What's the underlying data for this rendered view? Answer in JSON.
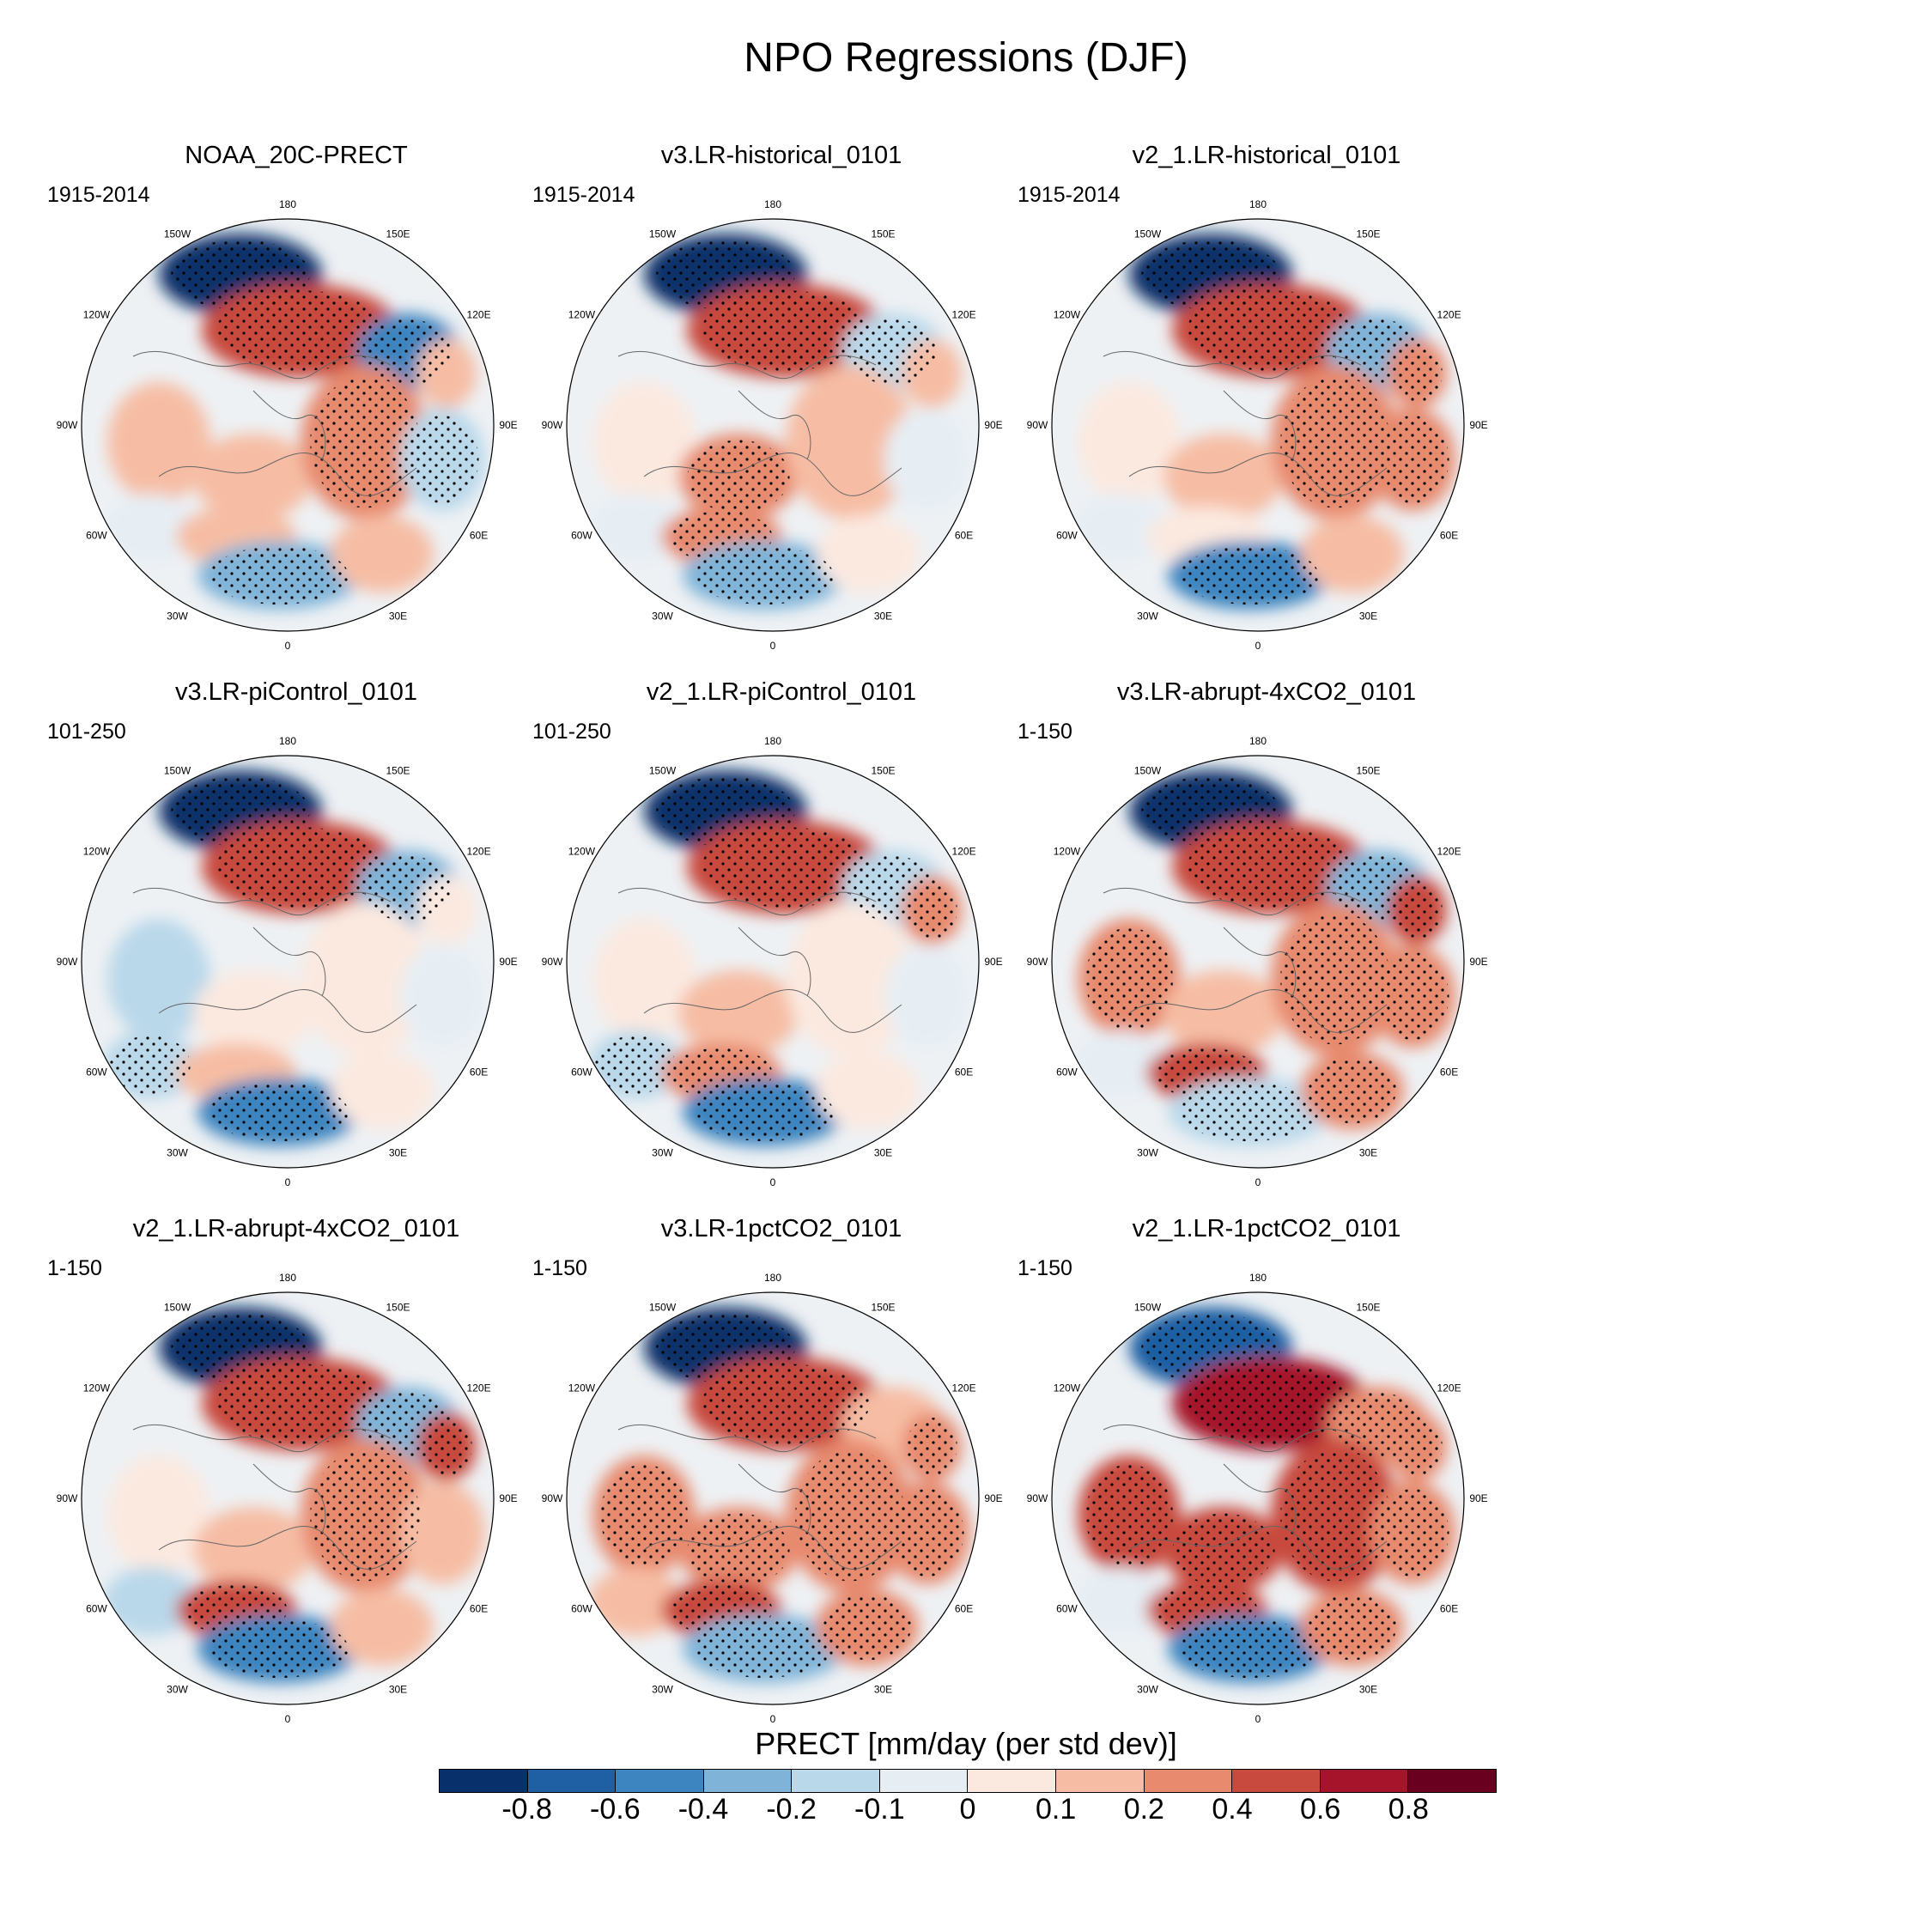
{
  "figure": {
    "title": "NPO Regressions (DJF)"
  },
  "panels": [
    {
      "title": "NOAA_20C-PRECT",
      "period": "1915-2014",
      "pattern": [
        [
          -0.95,
          0.55,
          -0.45,
          0.15
        ],
        [
          0.1,
          0.1,
          0.2,
          -0.2
        ],
        [
          -0.1,
          0.15,
          -0.3,
          0.1
        ]
      ]
    },
    {
      "title": "v3.LR-historical_0101",
      "period": "1915-2014",
      "pattern": [
        [
          -0.85,
          0.45,
          -0.2,
          0.1
        ],
        [
          0.05,
          0.2,
          0.15,
          -0.05
        ],
        [
          -0.05,
          0.25,
          -0.35,
          0.05
        ]
      ]
    },
    {
      "title": "v2_1.LR-historical_0101",
      "period": "1915-2014",
      "pattern": [
        [
          -0.85,
          0.45,
          -0.25,
          0.3
        ],
        [
          0.05,
          0.15,
          0.3,
          0.2
        ],
        [
          -0.05,
          0.05,
          -0.45,
          0.1
        ]
      ]
    },
    {
      "title": "v3.LR-piControl_0101",
      "period": "101-250",
      "pattern": [
        [
          -0.9,
          0.45,
          -0.3,
          0.05
        ],
        [
          -0.15,
          0.05,
          0.05,
          -0.1
        ],
        [
          -0.2,
          0.1,
          -0.45,
          0.05
        ]
      ]
    },
    {
      "title": "v2_1.LR-piControl_0101",
      "period": "101-250",
      "pattern": [
        [
          -0.9,
          0.5,
          -0.2,
          0.2
        ],
        [
          0.05,
          0.1,
          0.05,
          -0.1
        ],
        [
          -0.2,
          0.2,
          -0.5,
          0.05
        ]
      ]
    },
    {
      "title": "v3.LR-abrupt-4xCO2_0101",
      "period": "1-150",
      "pattern": [
        [
          -0.95,
          0.55,
          -0.25,
          0.45
        ],
        [
          0.35,
          0.1,
          0.35,
          0.3
        ],
        [
          -0.1,
          0.45,
          -0.2,
          0.3
        ]
      ]
    },
    {
      "title": "v2_1.LR-abrupt-4xCO2_0101",
      "period": "1-150",
      "pattern": [
        [
          -0.95,
          0.55,
          -0.3,
          0.4
        ],
        [
          0.05,
          0.1,
          0.3,
          0.1
        ],
        [
          -0.15,
          0.4,
          -0.45,
          0.1
        ]
      ]
    },
    {
      "title": "v3.LR-1pctCO2_0101",
      "period": "1-150",
      "pattern": [
        [
          -0.85,
          0.5,
          0.1,
          0.2
        ],
        [
          0.3,
          0.3,
          0.3,
          0.2
        ],
        [
          0.1,
          0.4,
          -0.4,
          0.2
        ]
      ]
    },
    {
      "title": "v2_1.LR-1pctCO2_0101",
      "period": "1-150",
      "pattern": [
        [
          -0.8,
          0.6,
          0.3,
          0.25
        ],
        [
          0.4,
          0.4,
          0.4,
          0.2
        ],
        [
          -0.1,
          0.45,
          -0.5,
          0.2
        ]
      ]
    }
  ],
  "longitude_labels": [
    "180",
    "150E",
    "120E",
    "90E",
    "60E",
    "30E",
    "0",
    "30W",
    "60W",
    "90W",
    "120W",
    "150W"
  ],
  "colorbar": {
    "title": "PRECT [mm/day (per std dev)]",
    "ticks": [
      "-0.8",
      "-0.6",
      "-0.4",
      "-0.2",
      "-0.1",
      "0",
      "0.1",
      "0.2",
      "0.4",
      "0.6",
      "0.8"
    ],
    "colors": [
      "#08306b",
      "#1f5fa3",
      "#3d85c0",
      "#7fb4d8",
      "#b9d8ea",
      "#e6eef4",
      "#fbe9e0",
      "#f6bda4",
      "#e78a6e",
      "#c84a3e",
      "#a5142b",
      "#6a0020"
    ]
  }
}
